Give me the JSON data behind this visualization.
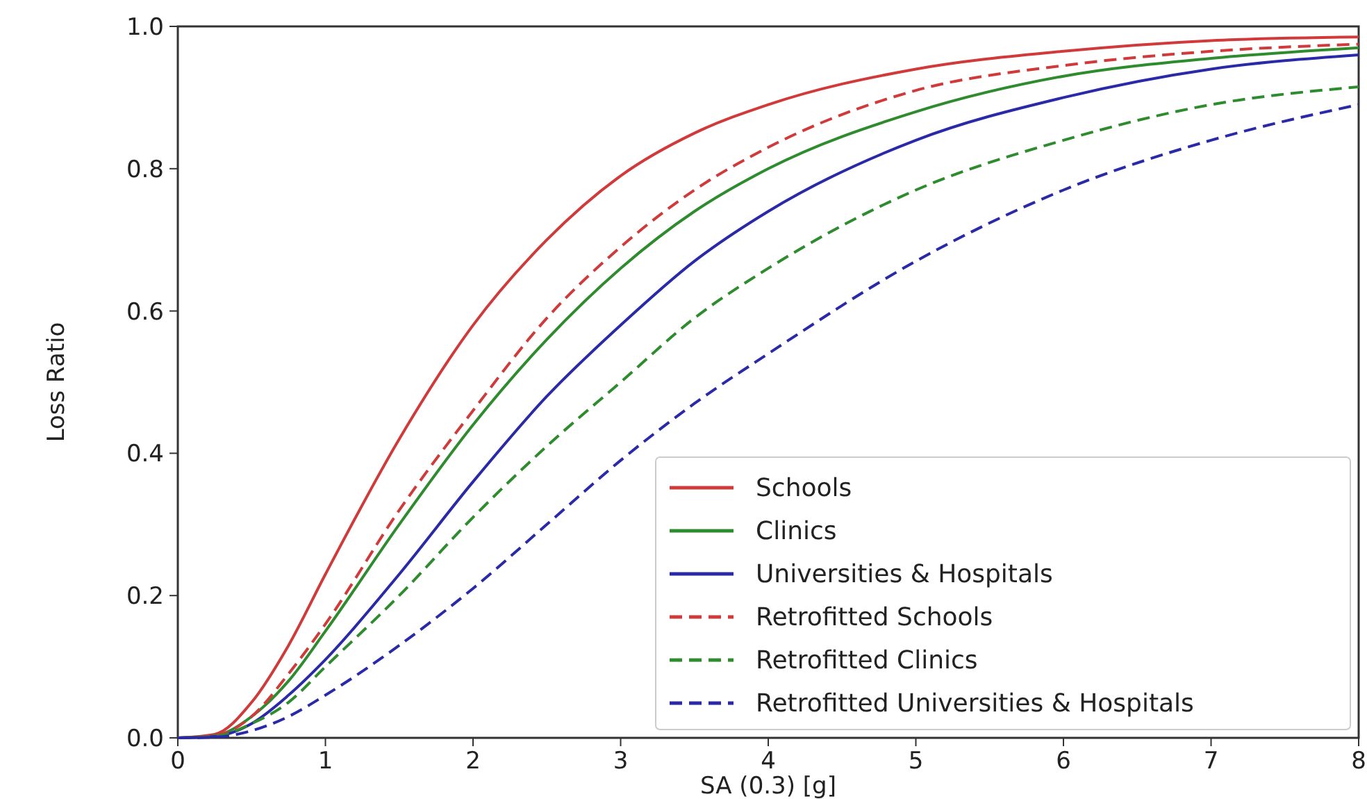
{
  "chart_data": {
    "type": "line",
    "xlabel": "SA (0.3) [g]",
    "ylabel": "Loss Ratio",
    "x": [
      0,
      0.25,
      0.5,
      0.75,
      1,
      1.5,
      2,
      2.5,
      3,
      3.5,
      4,
      5,
      6,
      7,
      8
    ],
    "xlim": [
      0,
      8
    ],
    "xticks": [
      0,
      1,
      2,
      3,
      4,
      5,
      6,
      7,
      8
    ],
    "ylim": [
      0,
      1
    ],
    "yticks": [
      {
        "value": 0,
        "label": "0.0"
      },
      0.2,
      0.4,
      0.6,
      0.8,
      {
        "value": 1,
        "label": "1.0"
      }
    ],
    "grid": false,
    "legend": "bottom right",
    "marker": "none",
    "series": [
      {
        "name": "Schools",
        "color": "#d03a3a",
        "line_style": "solid",
        "values": [
          0,
          0.005,
          0.05,
          0.13,
          0.23,
          0.42,
          0.58,
          0.7,
          0.79,
          0.85,
          0.89,
          0.94,
          0.965,
          0.98,
          0.985
        ]
      },
      {
        "name": "Clinics",
        "color": "#2e8b2e",
        "line_style": "solid",
        "values": [
          0,
          0.003,
          0.03,
          0.08,
          0.15,
          0.3,
          0.44,
          0.56,
          0.66,
          0.74,
          0.8,
          0.88,
          0.93,
          0.955,
          0.97
        ]
      },
      {
        "name": "Universities & Hospitals",
        "color": "#2a2aa8",
        "line_style": "solid",
        "values": [
          0,
          0.002,
          0.02,
          0.06,
          0.11,
          0.23,
          0.36,
          0.48,
          0.58,
          0.67,
          0.74,
          0.84,
          0.9,
          0.94,
          0.96
        ]
      },
      {
        "name": "Retrofitted Schools",
        "color": "#d03a3a",
        "line_style": "dashed",
        "values": [
          0,
          0.003,
          0.03,
          0.09,
          0.16,
          0.32,
          0.46,
          0.59,
          0.69,
          0.77,
          0.83,
          0.91,
          0.945,
          0.965,
          0.975
        ]
      },
      {
        "name": "Retrofitted Clinics",
        "color": "#2e8b2e",
        "line_style": "dashed",
        "values": [
          0,
          0.002,
          0.02,
          0.05,
          0.1,
          0.2,
          0.31,
          0.41,
          0.5,
          0.59,
          0.66,
          0.77,
          0.84,
          0.89,
          0.915
        ]
      },
      {
        "name": "Retrofitted Universities & Hospitals",
        "color": "#2a2aa8",
        "line_style": "dashed",
        "values": [
          0,
          0.001,
          0.01,
          0.03,
          0.06,
          0.13,
          0.21,
          0.3,
          0.39,
          0.47,
          0.54,
          0.67,
          0.77,
          0.84,
          0.89
        ]
      }
    ]
  }
}
